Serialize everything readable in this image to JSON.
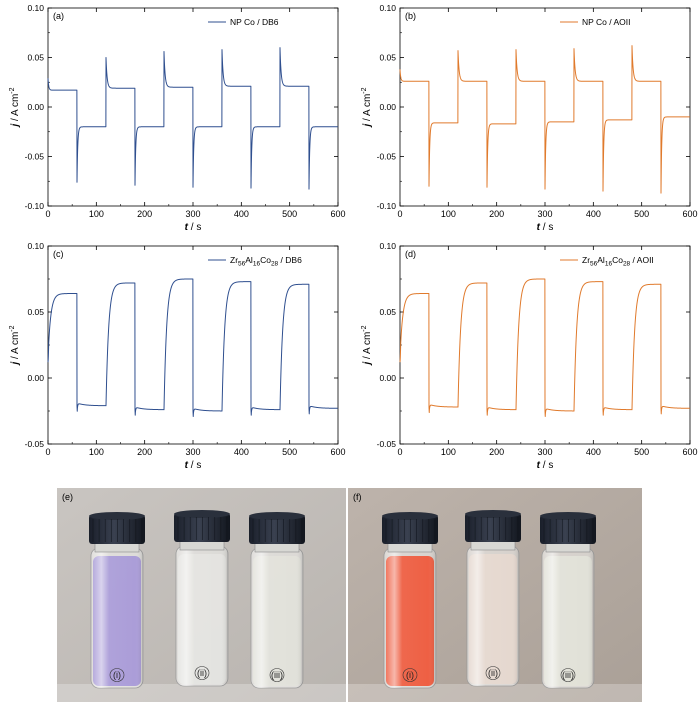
{
  "colors": {
    "blue": "#2f4f8f",
    "orange": "#e07a2c",
    "axis": "#000000"
  },
  "chart_data": [
    {
      "panel_label": "(a)",
      "type": "line",
      "series": [
        {
          "name": "NP Co / DB6",
          "color": "#2f4f8f",
          "profile": "A"
        }
      ],
      "xlim": [
        0,
        600
      ],
      "ylim": [
        -0.1,
        0.1
      ],
      "xticks": [
        "0",
        "100",
        "200",
        "300",
        "400",
        "500",
        "600"
      ],
      "yticks": [
        "-0.10",
        "-0.05",
        "0.00",
        "0.05",
        "0.10"
      ],
      "xlabel": "t",
      "xunit": " / s",
      "ylabel": "j",
      "yunit": " / A cm",
      "yunit_sup": "-2",
      "steady_anodic": [
        0.017,
        0.019,
        0.02,
        0.021,
        0.021
      ],
      "anodic_peaks": [
        0.05,
        0.056,
        0.058,
        0.06,
        0.063
      ],
      "steady_cathodic": [
        -0.02,
        -0.02,
        -0.02,
        -0.02,
        -0.02
      ],
      "cathodic_peaks": [
        -0.076,
        -0.079,
        -0.081,
        -0.082,
        -0.083
      ]
    },
    {
      "panel_label": "(b)",
      "type": "line",
      "series": [
        {
          "name": "NP Co / AOII",
          "color": "#e07a2c",
          "profile": "A"
        }
      ],
      "xlim": [
        0,
        600
      ],
      "ylim": [
        -0.1,
        0.1
      ],
      "xticks": [
        "0",
        "100",
        "200",
        "300",
        "400",
        "500",
        "600"
      ],
      "yticks": [
        "-0.10",
        "-0.05",
        "0.00",
        "0.05",
        "0.10"
      ],
      "xlabel": "t",
      "xunit": " / s",
      "ylabel": "j",
      "yunit": " / A cm",
      "yunit_sup": "-2",
      "steady_anodic": [
        0.026,
        0.026,
        0.026,
        0.026,
        0.026
      ],
      "anodic_peaks": [
        0.057,
        0.058,
        0.059,
        0.062,
        0.066
      ],
      "steady_cathodic": [
        -0.016,
        -0.017,
        -0.015,
        -0.013,
        -0.01
      ],
      "cathodic_peaks": [
        -0.08,
        -0.081,
        -0.083,
        -0.085,
        -0.087
      ]
    },
    {
      "panel_label": "(c)",
      "type": "line",
      "series": [
        {
          "name": "Zr56Al16Co28 / DB6",
          "color": "#2f4f8f",
          "profile": "B",
          "name_parts": {
            "zr": "Zr",
            "zr_sub": "56",
            "al": "Al",
            "al_sub": "16",
            "co": "Co",
            "co_sub": "28",
            "suffix": " / DB6"
          }
        }
      ],
      "xlim": [
        0,
        600
      ],
      "ylim": [
        -0.05,
        0.1
      ],
      "xticks": [
        "0",
        "100",
        "200",
        "300",
        "400",
        "500",
        "600"
      ],
      "yticks": [
        "-0.05",
        "0.00",
        "0.05",
        "0.10"
      ],
      "xlabel": "t",
      "xunit": " / s",
      "ylabel": "j",
      "yunit": " / A cm",
      "yunit_sup": "-2",
      "plateaus": [
        0.064,
        0.072,
        0.075,
        0.073,
        0.071
      ],
      "cathodic": [
        -0.021,
        -0.024,
        -0.025,
        -0.024,
        -0.023
      ]
    },
    {
      "panel_label": "(d)",
      "type": "line",
      "series": [
        {
          "name": "Zr56Al16Co28 / AOII",
          "color": "#e07a2c",
          "profile": "B",
          "name_parts": {
            "zr": "Zr",
            "zr_sub": "56",
            "al": "Al",
            "al_sub": "16",
            "co": "Co",
            "co_sub": "28",
            "suffix": " / AOII"
          }
        }
      ],
      "xlim": [
        0,
        600
      ],
      "ylim": [
        -0.05,
        0.1
      ],
      "xticks": [
        "0",
        "100",
        "200",
        "300",
        "400",
        "500",
        "600"
      ],
      "yticks": [
        "-0.05",
        "0.00",
        "0.05",
        "0.10"
      ],
      "xlabel": "t",
      "xunit": " / s",
      "ylabel": "j",
      "yunit": " / A cm",
      "yunit_sup": "-2",
      "plateaus": [
        0.064,
        0.072,
        0.075,
        0.073,
        0.071
      ],
      "cathodic": [
        -0.022,
        -0.024,
        -0.025,
        -0.024,
        -0.023
      ]
    }
  ],
  "photos": [
    {
      "label": "(e)",
      "vials": [
        {
          "label": "(i)",
          "liquid": "#a89ad8"
        },
        {
          "label": "(ii)",
          "liquid": "#e4e4e0"
        },
        {
          "label": "(iii)",
          "liquid": "#e2e2da"
        }
      ]
    },
    {
      "label": "(f)",
      "vials": [
        {
          "label": "(i)",
          "liquid": "#ef5a3c"
        },
        {
          "label": "(ii)",
          "liquid": "#e6d8cf"
        },
        {
          "label": "(iii)",
          "liquid": "#e2e1d8"
        }
      ]
    }
  ]
}
